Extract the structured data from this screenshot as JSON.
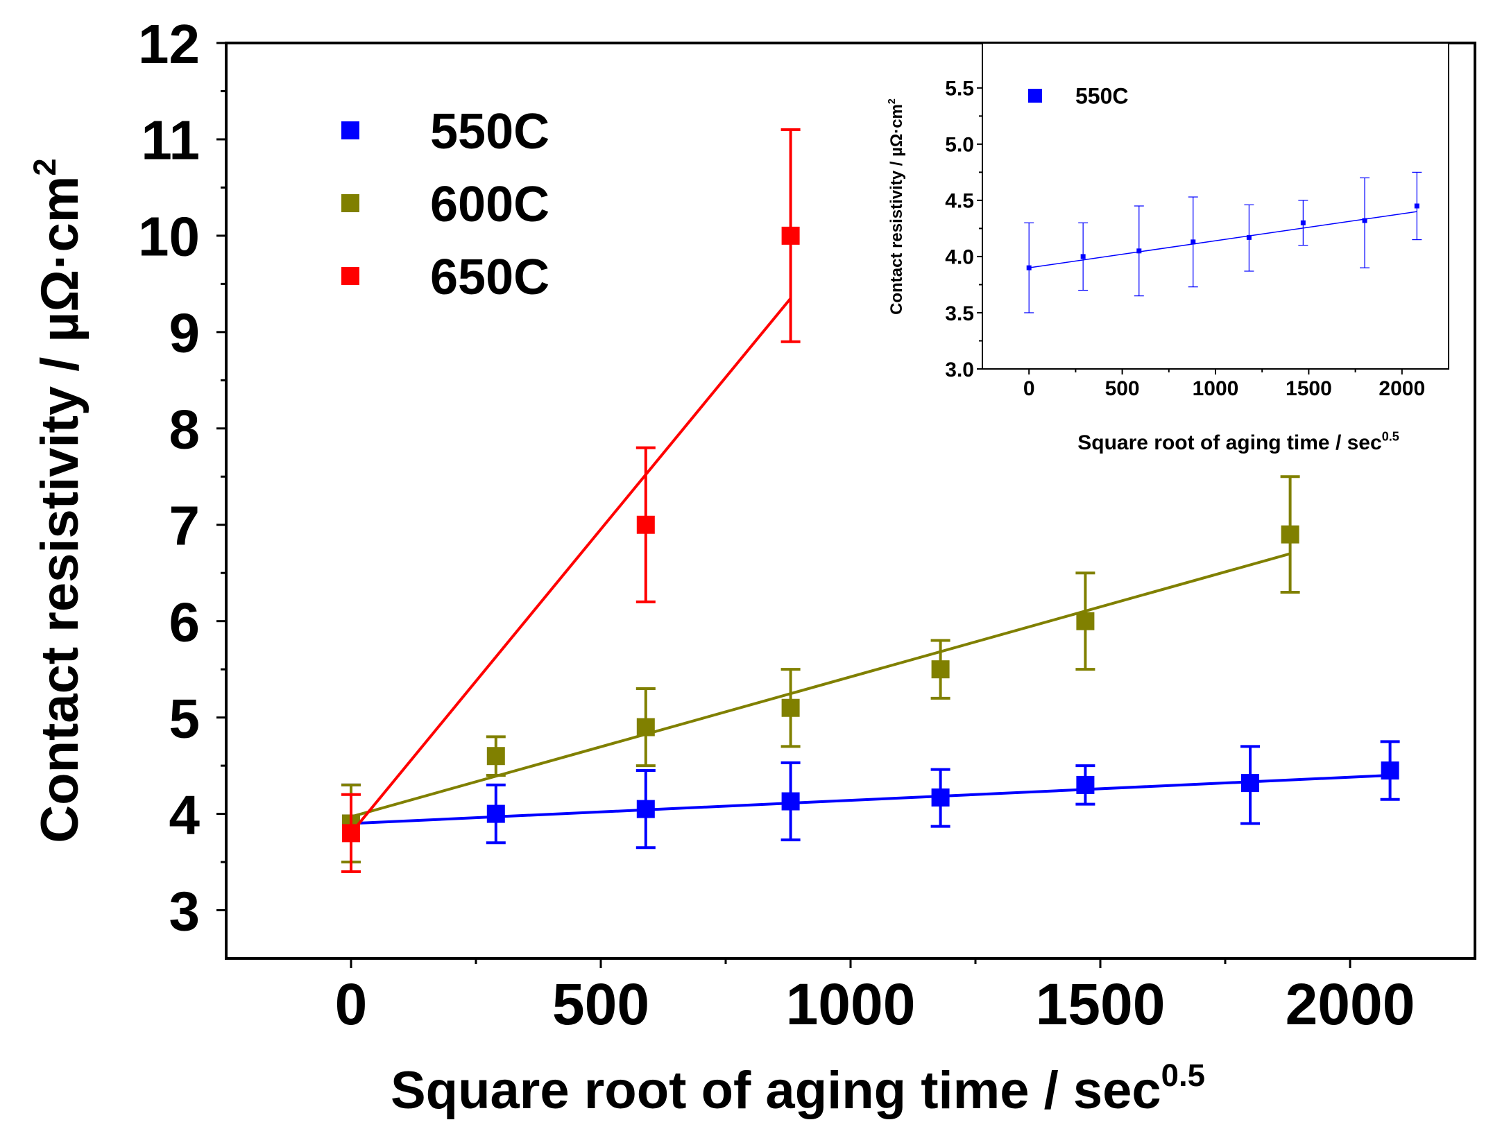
{
  "chart_data": [
    {
      "type": "scatter",
      "title": "",
      "xlabel": "Square root of aging time / sec",
      "xlabel_sup": "0.5",
      "ylabel": "Contact resistivity / µΩ·cm",
      "ylabel_sup": "2",
      "xlim": [
        -250,
        2250
      ],
      "ylim": [
        2.5,
        12
      ],
      "xticks": [
        0,
        500,
        1000,
        1500,
        2000
      ],
      "xtick_labels": [
        "0",
        "500",
        "1000",
        "1500",
        "2000"
      ],
      "yticks": [
        3,
        4,
        5,
        6,
        7,
        8,
        9,
        10,
        11,
        12
      ],
      "ytick_labels": [
        "3",
        "4",
        "5",
        "6",
        "7",
        "8",
        "9",
        "10",
        "11",
        "12"
      ],
      "legend_position": "top-left",
      "series": [
        {
          "name": "550C",
          "color": "#0000ff",
          "x": [
            0,
            290,
            590,
            880,
            1180,
            1470,
            1800,
            2080
          ],
          "y": [
            3.9,
            4.0,
            4.05,
            4.13,
            4.17,
            4.3,
            4.32,
            4.45
          ],
          "err_low": [
            3.5,
            3.7,
            3.65,
            3.73,
            3.87,
            4.1,
            3.9,
            4.15
          ],
          "err_high": [
            4.3,
            4.3,
            4.45,
            4.53,
            4.46,
            4.5,
            4.7,
            4.75
          ],
          "fit": [
            [
              0,
              3.9
            ],
            [
              2080,
              4.4
            ]
          ]
        },
        {
          "name": "600C",
          "color": "#808000",
          "x": [
            0,
            290,
            590,
            880,
            1180,
            1470,
            1880
          ],
          "y": [
            3.9,
            4.6,
            4.9,
            5.1,
            5.5,
            6.0,
            6.9
          ],
          "err_low": [
            3.5,
            4.4,
            4.5,
            4.7,
            5.2,
            5.5,
            6.3
          ],
          "err_high": [
            4.3,
            4.8,
            5.3,
            5.5,
            5.8,
            6.5,
            7.5
          ],
          "fit": [
            [
              0,
              3.97
            ],
            [
              1880,
              6.7
            ]
          ]
        },
        {
          "name": "650C",
          "color": "#ff0000",
          "x": [
            0,
            590,
            880
          ],
          "y": [
            3.8,
            7.0,
            10.0
          ],
          "err_low": [
            3.4,
            6.2,
            8.9
          ],
          "err_high": [
            4.2,
            7.8,
            11.1
          ],
          "fit": [
            [
              0,
              3.8
            ],
            [
              880,
              9.35
            ]
          ]
        }
      ]
    },
    {
      "type": "scatter",
      "title": "",
      "xlabel": "Square root of aging time / sec",
      "xlabel_sup": "0.5",
      "ylabel": "Contact resistivity / µΩ·cm",
      "ylabel_sup": "2",
      "xlim": [
        -250,
        2250
      ],
      "ylim": [
        3.0,
        5.9
      ],
      "xticks": [
        0,
        500,
        1000,
        1500,
        2000
      ],
      "xtick_labels": [
        "0",
        "500",
        "1000",
        "1500",
        "2000"
      ],
      "yticks": [
        3.0,
        3.5,
        4.0,
        4.5,
        5.0,
        5.5
      ],
      "ytick_labels": [
        "3.0",
        "3.5",
        "4.0",
        "4.5",
        "5.0",
        "5.5"
      ],
      "legend_position": "top-left",
      "series": [
        {
          "name": "550C",
          "color": "#0000ff",
          "x": [
            0,
            290,
            590,
            880,
            1180,
            1470,
            1800,
            2080
          ],
          "y": [
            3.9,
            4.0,
            4.05,
            4.13,
            4.17,
            4.3,
            4.32,
            4.45
          ],
          "err_low": [
            3.5,
            3.7,
            3.65,
            3.73,
            3.87,
            4.1,
            3.9,
            4.15
          ],
          "err_high": [
            4.3,
            4.3,
            4.45,
            4.53,
            4.46,
            4.5,
            4.7,
            4.75
          ],
          "fit": [
            [
              0,
              3.9
            ],
            [
              2080,
              4.4
            ]
          ]
        }
      ]
    }
  ]
}
